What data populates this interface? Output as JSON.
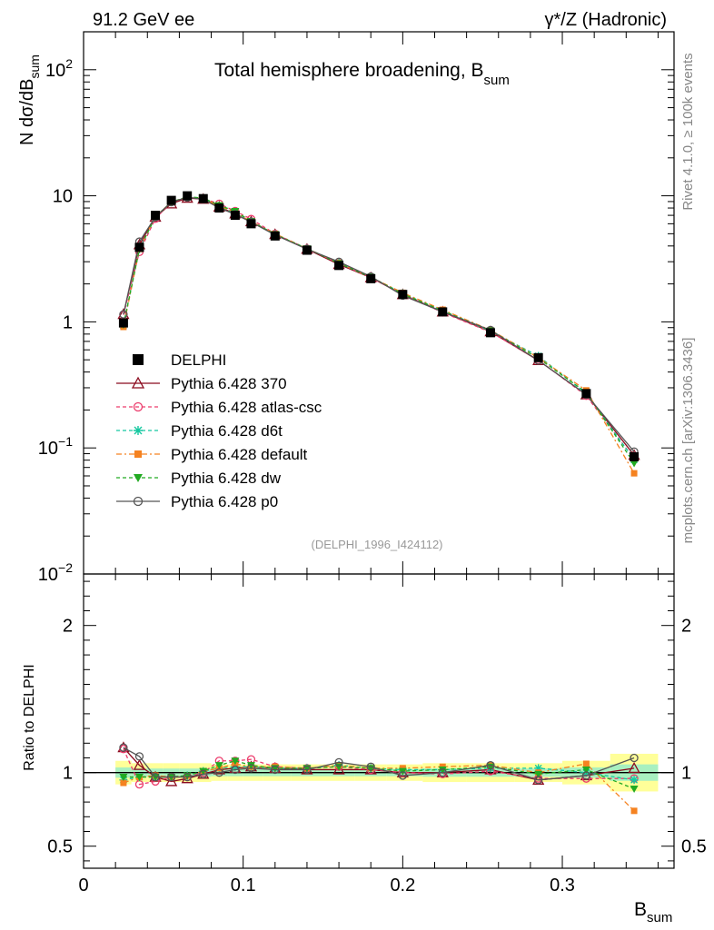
{
  "header": {
    "left": "91.2 GeV ee",
    "right": "γ*/Z (Hadronic)"
  },
  "side_labels": {
    "rivet": "Rivet 4.1.0, ≥ 100k events",
    "mcplots": "mcplots.cern.ch [arXiv:1306.3436]"
  },
  "chart_data": {
    "type": "line",
    "title": "Total hemisphere broadening, B",
    "title_sub": "sum",
    "analysis_tag": "(DELPHI_1996_I424112)",
    "xlabel": "B",
    "xlabel_sub": "sum",
    "ylabel": "N  dσ/dB",
    "ylabel_sub": "sum",
    "ratio_ylabel": "Ratio to DELPHI",
    "xlim": [
      0,
      0.37
    ],
    "ylim": [
      0.01,
      200
    ],
    "yscale": "log",
    "ratio_ylim": [
      0.35,
      2.35
    ],
    "x_ticks": [
      0,
      0.1,
      0.2,
      0.3
    ],
    "x_tick_labels": [
      "0",
      "0.1",
      "0.2",
      "0.3"
    ],
    "y_ticks": [
      {
        "value": 100,
        "base": "10",
        "exp": "2",
        "text": ""
      },
      {
        "value": 10,
        "base": "",
        "exp": "",
        "text": "10"
      },
      {
        "value": 1,
        "base": "",
        "exp": "",
        "text": "1"
      },
      {
        "value": 0.1,
        "base": "10",
        "exp": "−1",
        "text": ""
      },
      {
        "value": 0.01,
        "base": "10",
        "exp": "−2",
        "text": ""
      }
    ],
    "ratio_ticks": [
      {
        "value": 2,
        "text": "2"
      },
      {
        "value": 1,
        "text": "1"
      },
      {
        "value": 0.5,
        "text": "0.5"
      }
    ],
    "x": [
      0.025,
      0.035,
      0.045,
      0.055,
      0.065,
      0.075,
      0.085,
      0.095,
      0.105,
      0.12,
      0.14,
      0.16,
      0.18,
      0.2,
      0.225,
      0.255,
      0.285,
      0.315,
      0.345
    ],
    "data": {
      "name": "DELPHI",
      "values": [
        0.98,
        3.9,
        7.0,
        9.2,
        10.0,
        9.5,
        8.0,
        7.0,
        6.0,
        4.8,
        3.7,
        2.8,
        2.2,
        1.65,
        1.2,
        0.82,
        0.52,
        0.27,
        0.085
      ],
      "band_frac": [
        0.05,
        0.04,
        0.04,
        0.04,
        0.04,
        0.04,
        0.035,
        0.035,
        0.035,
        0.035,
        0.035,
        0.035,
        0.035,
        0.035,
        0.04,
        0.04,
        0.04,
        0.05,
        0.08
      ]
    },
    "series": [
      {
        "name": "Pythia 6.428 370",
        "color": "#8b0a1e",
        "dash": "",
        "marker": "triangle-open",
        "ratio": [
          1.17,
          1.05,
          0.97,
          0.94,
          0.96,
          0.99,
          1.02,
          1.03,
          1.04,
          1.03,
          1.02,
          1.02,
          1.02,
          1.0,
          1.0,
          1.02,
          0.95,
          0.98,
          1.03
        ]
      },
      {
        "name": "Pythia 6.428 atlas-csc",
        "color": "#ec3c6c",
        "dash": "4,3",
        "marker": "circle-open",
        "ratio": [
          1.16,
          0.92,
          0.94,
          0.97,
          0.97,
          1.0,
          1.08,
          1.08,
          1.09,
          1.04,
          1.03,
          1.04,
          1.02,
          1.0,
          0.99,
          1.01,
          0.96,
          0.96,
          0.96
        ]
      },
      {
        "name": "Pythia 6.428 d6t",
        "color": "#14c8a0",
        "dash": "4,3",
        "marker": "star",
        "ratio": [
          0.95,
          0.97,
          0.97,
          0.97,
          0.98,
          1.01,
          1.03,
          1.04,
          1.04,
          1.03,
          1.03,
          1.05,
          1.03,
          1.02,
          1.02,
          1.03,
          1.03,
          1.0,
          0.95
        ]
      },
      {
        "name": "Pythia 6.428 default",
        "color": "#f58220",
        "dash": "6,3,2,3",
        "marker": "square",
        "ratio": [
          0.93,
          0.97,
          0.98,
          0.97,
          0.98,
          1.01,
          1.03,
          1.06,
          1.04,
          1.04,
          1.03,
          1.05,
          1.03,
          1.03,
          1.04,
          1.05,
          1.0,
          1.06,
          0.74
        ]
      },
      {
        "name": "Pythia 6.428 dw",
        "color": "#22aa22",
        "dash": "4,3",
        "marker": "triangle-down",
        "ratio": [
          0.97,
          0.97,
          0.97,
          0.97,
          0.98,
          1.01,
          1.05,
          1.08,
          1.05,
          1.03,
          1.03,
          1.04,
          1.03,
          1.01,
          1.02,
          1.04,
          0.99,
          1.02,
          0.89
        ]
      },
      {
        "name": "Pythia 6.428 p0",
        "color": "#555555",
        "dash": "",
        "marker": "circle-open",
        "ratio": [
          1.17,
          1.11,
          0.97,
          0.97,
          0.97,
          0.99,
          1.0,
          1.02,
          1.03,
          1.02,
          1.02,
          1.07,
          1.04,
          0.98,
          1.0,
          1.05,
          0.95,
          0.98,
          1.1
        ]
      }
    ]
  }
}
